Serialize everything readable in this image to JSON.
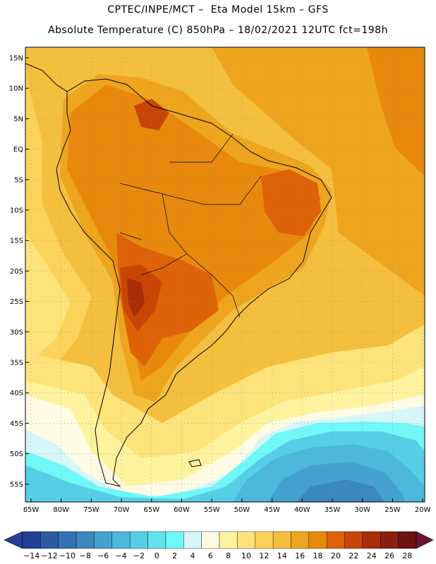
{
  "header": {
    "line1": "CPTEC/INPE/MCT –  Eta Model 15km – GFS",
    "line2": "Absolute Temperature (C) 850hPa – 18/02/2021 12UTC fct=198h"
  },
  "map": {
    "lat_labels": [
      "15N",
      "10N",
      "5N",
      "EQ",
      "5S",
      "10S",
      "15S",
      "20S",
      "25S",
      "30S",
      "35S",
      "40S",
      "45S",
      "50S",
      "55S"
    ],
    "lon_labels": [
      "85W",
      "80W",
      "75W",
      "70W",
      "65W",
      "60W",
      "55W",
      "50W",
      "45W",
      "40W",
      "35W",
      "30W",
      "25W",
      "20W"
    ]
  },
  "colorbar": {
    "colors": [
      "#243f95",
      "#2c5aa3",
      "#3371b2",
      "#3b87c0",
      "#44a1cf",
      "#4cb8dc",
      "#56cfe6",
      "#63e3ee",
      "#70f8f8",
      "#d6f6fb",
      "#fefbe4",
      "#fff3a0",
      "#fde37a",
      "#fbd25a",
      "#f4bf3e",
      "#eea51e",
      "#e8890e",
      "#de6208",
      "#c84505",
      "#a82e08",
      "#8b1f0d",
      "#6c1412"
    ],
    "labels": [
      "-14",
      "-12",
      "-10",
      "-8",
      "-6",
      "-4",
      "-2",
      "0",
      "2",
      "4",
      "6",
      "8",
      "10",
      "12",
      "14",
      "16",
      "18",
      "20",
      "22",
      "24",
      "26",
      "28"
    ]
  }
}
